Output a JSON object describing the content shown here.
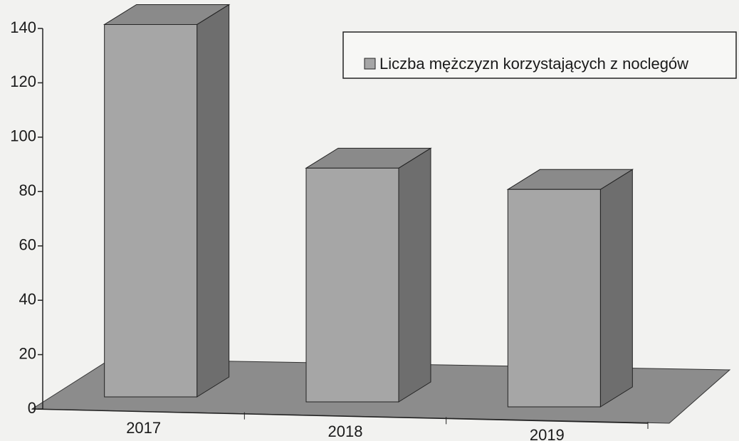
{
  "chart_data": {
    "type": "bar3d",
    "categories": [
      "2017",
      "2018",
      "2019"
    ],
    "series": [
      {
        "name": "Liczba mężczyzn korzystających z noclegów",
        "color": "#a6a6a6",
        "values": [
          137,
          86,
          80
        ]
      }
    ],
    "ylim": [
      0,
      140
    ],
    "yticks": [
      0,
      20,
      40,
      60,
      80,
      100,
      120,
      140
    ],
    "legend": "upper right",
    "grid": false
  }
}
